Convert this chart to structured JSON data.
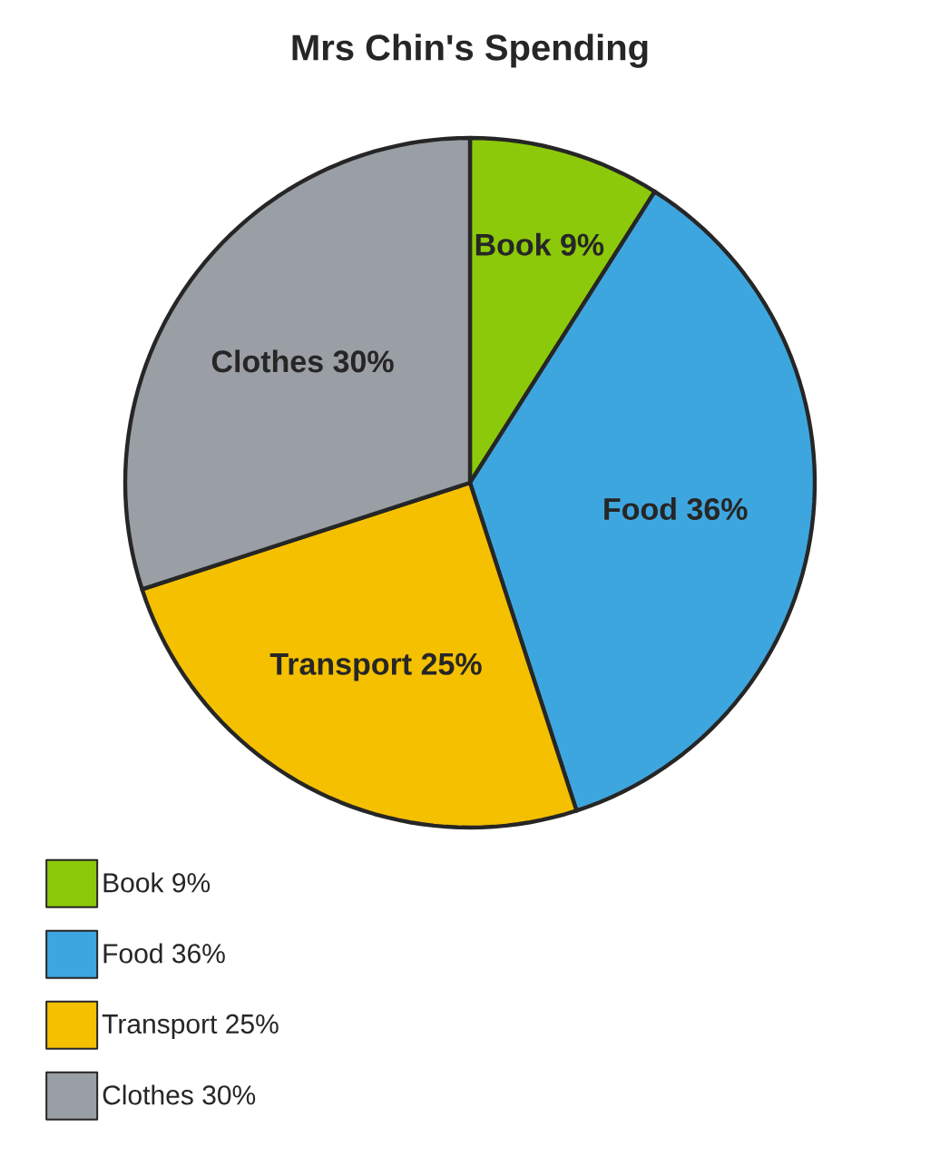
{
  "chart_data": {
    "type": "pie",
    "title": "Mrs Chin's Spending",
    "categories": [
      "Book",
      "Food",
      "Transport",
      "Clothes"
    ],
    "values": [
      9,
      36,
      25,
      30
    ],
    "value_labels": [
      "9%",
      "36%",
      "25%",
      "30%"
    ],
    "colors": [
      "#8cc90a",
      "#3ea6df",
      "#f4c000",
      "#9a9ea5"
    ],
    "legend": "bottom left"
  }
}
